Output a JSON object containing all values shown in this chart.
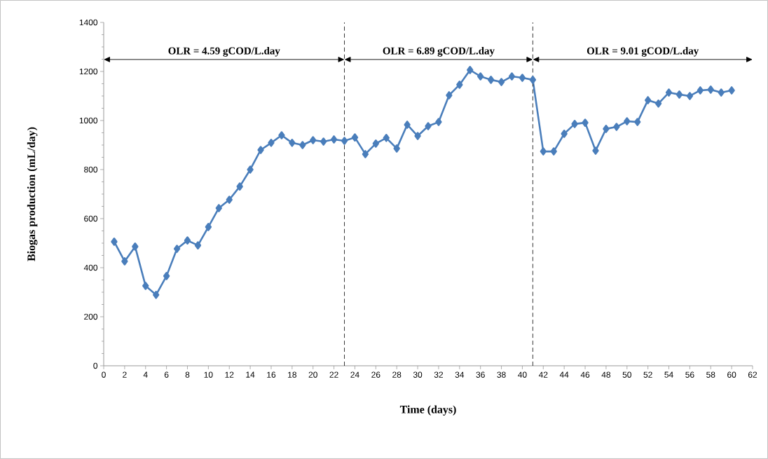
{
  "chart_data": {
    "type": "line",
    "xlabel": "Time (days)",
    "ylabel": "Biogas production (mL/day)",
    "x": [
      1,
      2,
      3,
      4,
      5,
      6,
      7,
      8,
      9,
      10,
      11,
      12,
      13,
      14,
      15,
      16,
      17,
      18,
      19,
      20,
      21,
      22,
      23,
      24,
      25,
      26,
      27,
      28,
      29,
      30,
      31,
      32,
      33,
      34,
      35,
      36,
      37,
      38,
      39,
      40,
      41,
      42,
      43,
      44,
      45,
      46,
      47,
      48,
      49,
      50,
      51,
      52,
      53,
      54,
      55,
      56,
      57,
      58,
      59,
      60
    ],
    "series": [
      {
        "color": "#4a7ebb",
        "values": [
          506,
          426,
          486,
          326,
          289,
          366,
          477,
          511,
          491,
          566,
          643,
          677,
          731,
          800,
          880,
          909,
          940,
          909,
          900,
          920,
          914,
          923,
          917,
          931,
          863,
          906,
          929,
          886,
          983,
          937,
          977,
          994,
          1103,
          1146,
          1206,
          1180,
          1166,
          1157,
          1180,
          1174,
          1166,
          874,
          874,
          946,
          986,
          991,
          877,
          966,
          974,
          997,
          994,
          1083,
          1069,
          1114,
          1106,
          1100,
          1123,
          1126,
          1114,
          1123
        ]
      }
    ],
    "marker": "diamond",
    "line_style": "solid",
    "xlim": [
      0,
      62
    ],
    "xticks": [
      0,
      2,
      4,
      6,
      8,
      10,
      12,
      14,
      16,
      18,
      20,
      22,
      24,
      26,
      28,
      30,
      32,
      34,
      36,
      38,
      40,
      42,
      44,
      46,
      48,
      50,
      52,
      54,
      56,
      58,
      60,
      62
    ],
    "ylim": [
      0,
      1400
    ],
    "yticks": [
      0,
      200,
      400,
      600,
      800,
      1000,
      1200,
      1400
    ],
    "ref_lines": [
      {
        "axis": "x",
        "value": 23,
        "line_style": "dashed",
        "color": "#000000"
      },
      {
        "axis": "x",
        "value": 41,
        "line_style": "dashed",
        "color": "#000000"
      }
    ],
    "annotations": [
      "OLR = 4.59 gCOD/L.day",
      "OLR = 6.89 gCOD/L.day",
      "OLR = 9.01 gCOD/L.day"
    ]
  }
}
